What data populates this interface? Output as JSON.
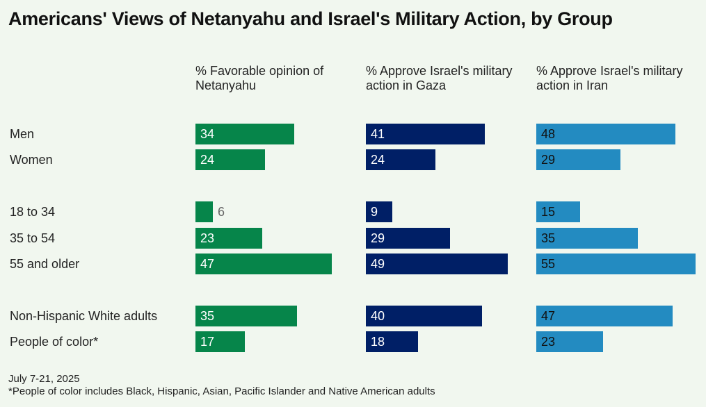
{
  "chart_data": {
    "type": "bar",
    "title": "Americans' Views of Netanyahu and Israel's Military Action, by Group",
    "categories": [
      "Men",
      "Women",
      "18 to 34",
      "35 to 54",
      "55 and older",
      "Non-Hispanic White adults",
      "People of color*"
    ],
    "groups": [
      [
        0,
        1
      ],
      [
        2,
        3,
        4
      ],
      [
        5,
        6
      ]
    ],
    "series": [
      {
        "name": "% Favorable opinion of Netanyahu",
        "color": "#06854a",
        "label_color": "#ffffff",
        "values": [
          34,
          24,
          6,
          23,
          47,
          35,
          17
        ]
      },
      {
        "name": "% Approve Israel's military action in Gaza",
        "color": "#001f66",
        "label_color": "#ffffff",
        "values": [
          41,
          24,
          9,
          29,
          49,
          40,
          18
        ]
      },
      {
        "name": "% Approve Israel's military action in Iran",
        "color": "#238bc1",
        "label_color": "#111111",
        "values": [
          48,
          29,
          15,
          35,
          55,
          47,
          23
        ]
      }
    ],
    "xlim": [
      0,
      60
    ],
    "notes": [
      "July 7-21, 2025",
      "*People of color includes Black, Hispanic, Asian, Pacific Islander and Native American adults"
    ]
  }
}
